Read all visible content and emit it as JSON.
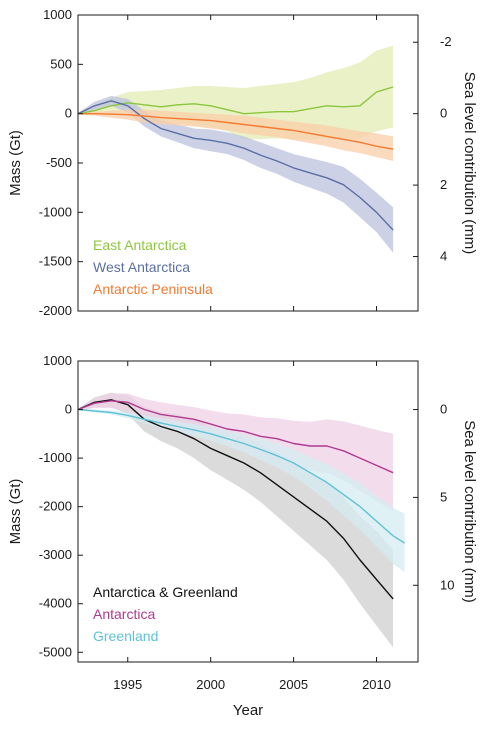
{
  "chart_data": [
    {
      "type": "area",
      "xlabel": "",
      "ylabel": "Mass (Gt)",
      "ylabel_right": "Sea level contribution (mm)",
      "xlim": [
        1992,
        2012.5
      ],
      "ylim": [
        -2000,
        1000
      ],
      "xticks": [
        1995,
        2000,
        2005,
        2010
      ],
      "yticks": [
        1000,
        500,
        0,
        -500,
        -1000,
        -1500,
        -2000
      ],
      "yticks_right": [
        {
          "label": "-2",
          "mass": 724
        },
        {
          "label": "0",
          "mass": 0
        },
        {
          "label": "2",
          "mass": -724
        },
        {
          "label": "4",
          "mass": -1448
        }
      ],
      "legend_position": "bottom-left",
      "series": [
        {
          "name": "East Antarctica",
          "color": "#8cc63f",
          "band_color": "#e3ecb4",
          "x": [
            1992,
            1993,
            1994,
            1995,
            1996,
            1997,
            1998,
            1999,
            2000,
            2001,
            2002,
            2003,
            2004,
            2005,
            2006,
            2007,
            2008,
            2009,
            2010,
            2011
          ],
          "y": [
            0,
            30,
            80,
            110,
            90,
            70,
            90,
            100,
            80,
            40,
            0,
            10,
            20,
            20,
            50,
            80,
            70,
            80,
            220,
            270
          ],
          "upper": [
            10,
            70,
            160,
            220,
            230,
            240,
            260,
            280,
            280,
            270,
            260,
            280,
            300,
            320,
            360,
            420,
            460,
            520,
            640,
            690
          ],
          "lower": [
            -10,
            -10,
            0,
            0,
            -50,
            -100,
            -100,
            -120,
            -140,
            -180,
            -260,
            -260,
            -250,
            -260,
            -260,
            -250,
            -270,
            -250,
            -180,
            -140
          ]
        },
        {
          "name": "West Antarctica",
          "color": "#5b6fa5",
          "band_color": "#bcc2dd",
          "x": [
            1992,
            1993,
            1994,
            1995,
            1996,
            1997,
            1998,
            1999,
            2000,
            2001,
            2002,
            2003,
            2004,
            2005,
            2006,
            2007,
            2008,
            2009,
            2010,
            2011
          ],
          "y": [
            0,
            80,
            130,
            80,
            -50,
            -150,
            -200,
            -250,
            -270,
            -300,
            -350,
            -420,
            -480,
            -550,
            -600,
            -650,
            -720,
            -850,
            -1000,
            -1180
          ],
          "upper": [
            10,
            120,
            180,
            150,
            30,
            -70,
            -110,
            -150,
            -160,
            -190,
            -230,
            -290,
            -350,
            -410,
            -450,
            -490,
            -540,
            -660,
            -800,
            -950
          ],
          "lower": [
            -10,
            40,
            80,
            10,
            -130,
            -230,
            -290,
            -350,
            -380,
            -410,
            -470,
            -550,
            -610,
            -690,
            -750,
            -810,
            -900,
            -1050,
            -1200,
            -1410
          ]
        },
        {
          "name": "Antarctic Peninsula",
          "color": "#f47a30",
          "band_color": "#f9cda8",
          "x": [
            1992,
            1993,
            1994,
            1995,
            1996,
            1997,
            1998,
            1999,
            2000,
            2001,
            2002,
            2003,
            2004,
            2005,
            2006,
            2007,
            2008,
            2009,
            2010,
            2011
          ],
          "y": [
            0,
            0,
            -5,
            -10,
            -25,
            -40,
            -50,
            -60,
            -70,
            -90,
            -110,
            -130,
            -150,
            -170,
            -200,
            -230,
            -260,
            -290,
            -330,
            -360
          ],
          "upper": [
            5,
            20,
            30,
            40,
            40,
            30,
            20,
            10,
            0,
            -10,
            -20,
            -40,
            -60,
            -80,
            -100,
            -120,
            -150,
            -180,
            -200,
            -230
          ],
          "lower": [
            -5,
            -20,
            -40,
            -60,
            -90,
            -110,
            -120,
            -130,
            -150,
            -170,
            -200,
            -220,
            -240,
            -270,
            -300,
            -330,
            -370,
            -400,
            -440,
            -480
          ]
        }
      ]
    },
    {
      "type": "area",
      "xlabel": "Year",
      "ylabel": "Mass (Gt)",
      "ylabel_right": "Sea level contribution (mm)",
      "xlim": [
        1992,
        2012.5
      ],
      "ylim": [
        -5200,
        1000
      ],
      "xticks": [
        1995,
        2000,
        2005,
        2010
      ],
      "yticks": [
        1000,
        0,
        -1000,
        -2000,
        -3000,
        -4000,
        -5000
      ],
      "yticks_right": [
        {
          "label": "0",
          "mass": 0
        },
        {
          "label": "5",
          "mass": -1810
        },
        {
          "label": "10",
          "mass": -3620
        }
      ],
      "legend_position": "bottom-left",
      "series": [
        {
          "name": "Antarctica & Greenland",
          "color": "#111111",
          "band_color": "#cfcfcf",
          "x": [
            1992,
            1993,
            1994,
            1995,
            1996,
            1997,
            1998,
            1999,
            2000,
            2001,
            2002,
            2003,
            2004,
            2005,
            2006,
            2007,
            2008,
            2009,
            2010,
            2011
          ],
          "y": [
            0,
            150,
            200,
            100,
            -200,
            -350,
            -450,
            -600,
            -800,
            -950,
            -1100,
            -1300,
            -1550,
            -1800,
            -2050,
            -2300,
            -2650,
            -3100,
            -3500,
            -3900
          ],
          "upper": [
            20,
            250,
            350,
            300,
            50,
            -50,
            -100,
            -200,
            -350,
            -450,
            -550,
            -700,
            -900,
            -1100,
            -1300,
            -1500,
            -1800,
            -2200,
            -2500,
            -2900
          ],
          "lower": [
            -20,
            50,
            50,
            -100,
            -450,
            -650,
            -800,
            -1000,
            -1250,
            -1450,
            -1650,
            -1900,
            -2200,
            -2500,
            -2800,
            -3100,
            -3500,
            -4000,
            -4450,
            -4900
          ]
        },
        {
          "name": "Antarctica",
          "color": "#b03a8f",
          "band_color": "#efd2e6",
          "x": [
            1992,
            1993,
            1994,
            1995,
            1996,
            1997,
            1998,
            1999,
            2000,
            2001,
            2002,
            2003,
            2004,
            2005,
            2006,
            2007,
            2008,
            2009,
            2010,
            2011
          ],
          "y": [
            0,
            130,
            180,
            150,
            0,
            -100,
            -150,
            -200,
            -300,
            -400,
            -450,
            -550,
            -600,
            -700,
            -750,
            -750,
            -850,
            -1000,
            -1150,
            -1300
          ],
          "upper": [
            20,
            230,
            330,
            330,
            220,
            150,
            100,
            50,
            -20,
            -80,
            -100,
            -160,
            -180,
            -230,
            -250,
            -200,
            -240,
            -330,
            -420,
            -500
          ],
          "lower": [
            -20,
            30,
            30,
            -30,
            -200,
            -350,
            -400,
            -450,
            -580,
            -720,
            -800,
            -940,
            -1020,
            -1170,
            -1250,
            -1300,
            -1460,
            -1670,
            -1880,
            -2100
          ]
        },
        {
          "name": "Greenland",
          "color": "#5ec3d8",
          "band_color": "#d4ecf1",
          "x": [
            1992,
            1993,
            1994,
            1995,
            1996,
            1997,
            1998,
            1999,
            2000,
            2001,
            2002,
            2003,
            2004,
            2005,
            2006,
            2007,
            2008,
            2009,
            2010,
            2011,
            2011.7
          ],
          "y": [
            0,
            -30,
            -60,
            -120,
            -200,
            -280,
            -350,
            -420,
            -500,
            -600,
            -700,
            -820,
            -950,
            -1100,
            -1300,
            -1500,
            -1750,
            -2000,
            -2300,
            -2600,
            -2750
          ],
          "upper": [
            10,
            0,
            -20,
            -60,
            -120,
            -180,
            -240,
            -300,
            -360,
            -440,
            -520,
            -600,
            -700,
            -820,
            -980,
            -1120,
            -1320,
            -1520,
            -1780,
            -2020,
            -2150
          ],
          "lower": [
            -10,
            -60,
            -100,
            -180,
            -280,
            -380,
            -460,
            -540,
            -640,
            -760,
            -880,
            -1040,
            -1200,
            -1380,
            -1620,
            -1880,
            -2180,
            -2480,
            -2820,
            -3180,
            -3350
          ]
        }
      ]
    }
  ]
}
